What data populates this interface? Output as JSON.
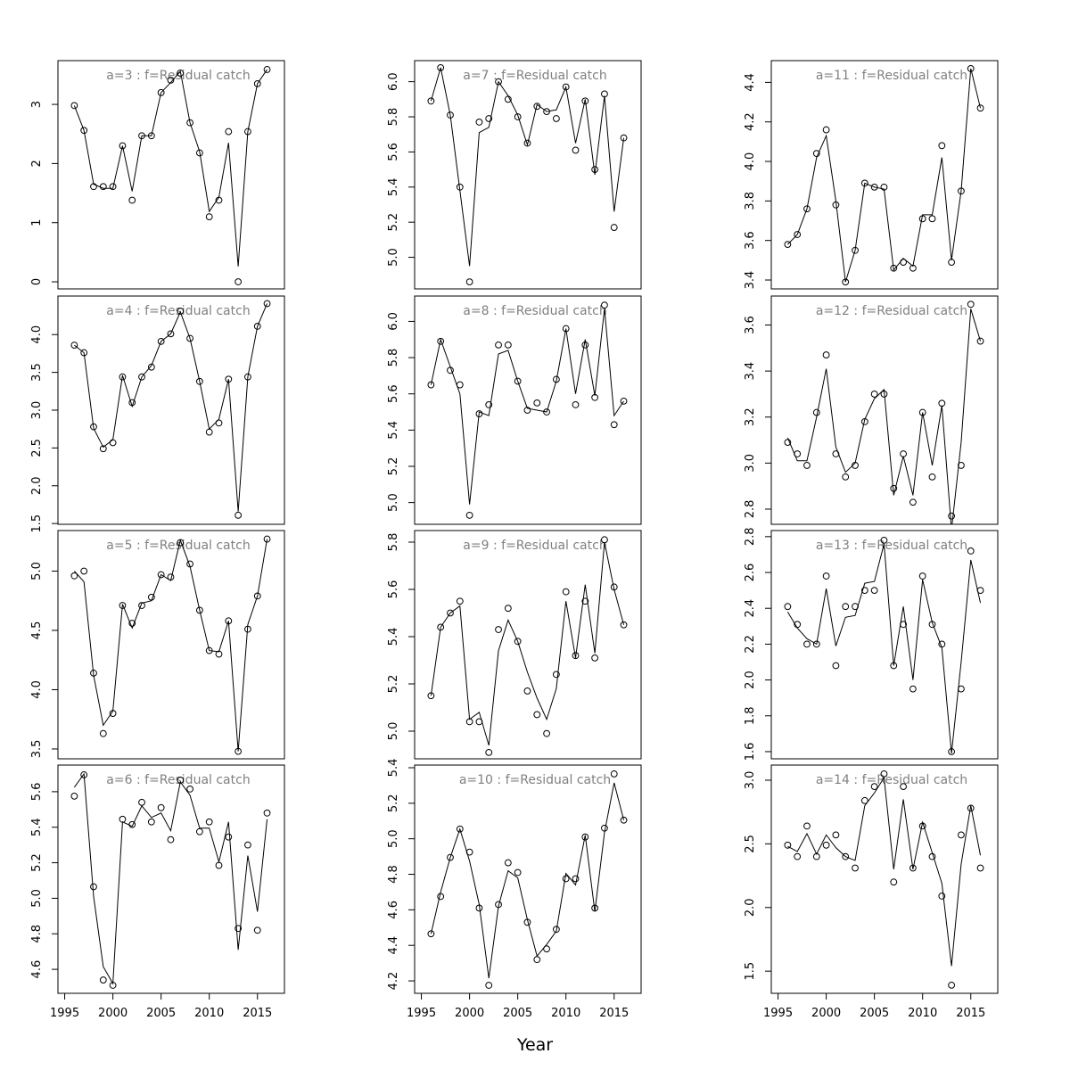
{
  "xlabel": "Year",
  "chart_data": [
    {
      "type": "line",
      "title": "a=3  :  f=Residual catch",
      "x": [
        1996,
        1997,
        1998,
        1999,
        2000,
        2001,
        2002,
        2003,
        2004,
        2005,
        2006,
        2007,
        2008,
        2009,
        2010,
        2011,
        2012,
        2013,
        2014,
        2015,
        2016
      ],
      "observed": [
        2.98,
        2.56,
        1.61,
        1.61,
        1.61,
        2.3,
        1.38,
        2.47,
        2.47,
        3.2,
        3.41,
        3.53,
        2.69,
        2.18,
        1.1,
        1.38,
        2.54,
        0.0,
        2.54,
        3.35,
        3.59
      ],
      "fitted": [
        2.98,
        2.56,
        1.65,
        1.58,
        1.58,
        2.3,
        1.53,
        2.47,
        2.47,
        3.2,
        3.37,
        3.56,
        2.69,
        2.2,
        1.19,
        1.43,
        2.35,
        0.26,
        2.54,
        3.35,
        3.59
      ],
      "xlim": [
        1994.3,
        2017.8
      ],
      "ylim": [
        -0.12,
        3.74
      ],
      "yticks": [
        0,
        1,
        2,
        3
      ]
    },
    {
      "type": "line",
      "title": "a=4  :  f=Residual catch",
      "x": [
        1996,
        1997,
        1998,
        1999,
        2000,
        2001,
        2002,
        2003,
        2004,
        2005,
        2006,
        2007,
        2008,
        2009,
        2010,
        2011,
        2012,
        2013,
        2014,
        2015,
        2016
      ],
      "observed": [
        3.86,
        3.76,
        2.78,
        2.49,
        2.57,
        3.44,
        3.1,
        3.44,
        3.57,
        3.91,
        4.01,
        4.31,
        3.95,
        3.38,
        2.71,
        2.83,
        3.41,
        1.61,
        3.44,
        4.11,
        4.41
      ],
      "fitted": [
        3.86,
        3.76,
        2.76,
        2.51,
        2.61,
        3.46,
        3.05,
        3.44,
        3.59,
        3.91,
        4.01,
        4.3,
        3.95,
        3.38,
        2.75,
        2.88,
        3.41,
        1.66,
        3.44,
        4.11,
        4.41
      ],
      "xlim": [
        1994.3,
        2017.8
      ],
      "ylim": [
        1.49,
        4.51
      ],
      "yticks": [
        1.5,
        {
          "value": 2,
          "label": "2.0"
        },
        2.5,
        {
          "value": 3,
          "label": "3.0"
        },
        3.5,
        {
          "value": 4,
          "label": "4.0"
        }
      ]
    },
    {
      "type": "line",
      "title": "a=5  :  f=Residual catch",
      "x": [
        1996,
        1997,
        1998,
        1999,
        2000,
        2001,
        2002,
        2003,
        2004,
        2005,
        2006,
        2007,
        2008,
        2009,
        2010,
        2011,
        2012,
        2013,
        2014,
        2015,
        2016
      ],
      "observed": [
        4.96,
        5.0,
        4.14,
        3.63,
        3.8,
        4.71,
        4.56,
        4.71,
        4.78,
        4.97,
        4.95,
        5.24,
        5.06,
        4.67,
        4.33,
        4.3,
        4.58,
        3.48,
        4.51,
        4.79,
        5.27
      ],
      "fitted": [
        5.0,
        4.91,
        4.12,
        3.7,
        3.82,
        4.72,
        4.52,
        4.73,
        4.75,
        4.97,
        4.92,
        5.26,
        5.04,
        4.67,
        4.33,
        4.32,
        4.58,
        3.48,
        4.55,
        4.79,
        5.27
      ],
      "xlim": [
        1994.3,
        2017.8
      ],
      "ylim": [
        3.417,
        5.342
      ],
      "yticks": [
        3.5,
        {
          "value": 4,
          "label": "4.0"
        },
        4.5,
        {
          "value": 5,
          "label": "5.0"
        }
      ]
    },
    {
      "type": "line",
      "title": "a=6  :  f=Residual catch",
      "x": [
        1996,
        1997,
        1998,
        1999,
        2000,
        2001,
        2002,
        2003,
        2004,
        2005,
        2006,
        2007,
        2008,
        2009,
        2010,
        2011,
        2012,
        2013,
        2014,
        2015,
        2016
      ],
      "observed": [
        5.575,
        5.695,
        5.065,
        4.54,
        4.51,
        5.445,
        5.415,
        5.54,
        5.43,
        5.51,
        5.33,
        5.665,
        5.615,
        5.375,
        5.43,
        5.185,
        5.345,
        4.83,
        5.3,
        4.82,
        5.48
      ],
      "fitted": [
        5.625,
        5.7,
        5.01,
        4.615,
        4.52,
        5.43,
        5.405,
        5.52,
        5.455,
        5.48,
        5.38,
        5.655,
        5.58,
        5.395,
        5.395,
        5.205,
        5.43,
        4.71,
        5.24,
        4.925,
        5.445
      ],
      "xlim": [
        1994.3,
        2017.8
      ],
      "ylim": [
        4.465,
        5.75
      ],
      "yticks": [
        4.6,
        4.8,
        {
          "value": 5,
          "label": "5.0"
        },
        5.2,
        5.4,
        5.6
      ],
      "xticks": [
        1995,
        2000,
        2005,
        2010,
        2015
      ]
    },
    {
      "type": "line",
      "title": "a=7  :  f=Residual catch",
      "x": [
        1996,
        1997,
        1998,
        1999,
        2000,
        2001,
        2002,
        2003,
        2004,
        2005,
        2006,
        2007,
        2008,
        2009,
        2010,
        2011,
        2012,
        2013,
        2014,
        2015,
        2016
      ],
      "observed": [
        5.89,
        6.08,
        5.81,
        5.4,
        4.86,
        5.77,
        5.79,
        6.0,
        5.9,
        5.8,
        5.65,
        5.86,
        5.83,
        5.79,
        5.97,
        5.61,
        5.89,
        5.5,
        5.93,
        5.17,
        5.68
      ],
      "fitted": [
        5.89,
        6.08,
        5.81,
        5.38,
        4.95,
        5.71,
        5.74,
        6.0,
        5.92,
        5.81,
        5.64,
        5.87,
        5.83,
        5.84,
        5.97,
        5.65,
        5.9,
        5.47,
        5.92,
        5.26,
        5.68
      ],
      "xlim": [
        1994.3,
        2017.8
      ],
      "ylim": [
        4.82,
        6.12
      ],
      "yticks": [
        {
          "value": 5,
          "label": "5.0"
        },
        5.2,
        5.4,
        5.6,
        5.8,
        {
          "value": 6,
          "label": "6.0"
        }
      ]
    },
    {
      "type": "line",
      "title": "a=8  :  f=Residual catch",
      "x": [
        1996,
        1997,
        1998,
        1999,
        2000,
        2001,
        2002,
        2003,
        2004,
        2005,
        2006,
        2007,
        2008,
        2009,
        2010,
        2011,
        2012,
        2013,
        2014,
        2015,
        2016
      ],
      "observed": [
        5.65,
        5.89,
        5.73,
        5.65,
        4.93,
        5.49,
        5.54,
        5.87,
        5.87,
        5.67,
        5.51,
        5.55,
        5.5,
        5.68,
        5.96,
        5.54,
        5.87,
        5.58,
        6.09,
        5.43,
        5.56
      ],
      "fitted": [
        5.65,
        5.9,
        5.75,
        5.6,
        4.99,
        5.5,
        5.48,
        5.82,
        5.84,
        5.67,
        5.52,
        5.51,
        5.5,
        5.67,
        5.96,
        5.6,
        5.9,
        5.59,
        6.07,
        5.48,
        5.56
      ],
      "xlim": [
        1994.3,
        2017.8
      ],
      "ylim": [
        4.88,
        6.14
      ],
      "yticks": [
        {
          "value": 5,
          "label": "5.0"
        },
        5.2,
        5.4,
        5.6,
        5.8,
        {
          "value": 6,
          "label": "6.0"
        }
      ]
    },
    {
      "type": "line",
      "title": "a=9  :  f=Residual catch",
      "x": [
        1996,
        1997,
        1998,
        1999,
        2000,
        2001,
        2002,
        2003,
        2004,
        2005,
        2006,
        2007,
        2008,
        2009,
        2010,
        2011,
        2012,
        2013,
        2014,
        2015,
        2016
      ],
      "observed": [
        5.15,
        5.44,
        5.5,
        5.55,
        5.04,
        5.04,
        4.91,
        5.43,
        5.52,
        5.38,
        5.17,
        5.07,
        4.99,
        5.24,
        5.59,
        5.32,
        5.55,
        5.31,
        5.81,
        5.61,
        5.45
      ],
      "fitted": [
        5.15,
        5.44,
        5.5,
        5.53,
        5.05,
        5.08,
        4.94,
        5.34,
        5.47,
        5.38,
        5.25,
        5.14,
        5.05,
        5.18,
        5.55,
        5.31,
        5.62,
        5.33,
        5.8,
        5.6,
        5.45
      ],
      "xlim": [
        1994.3,
        2017.8
      ],
      "ylim": [
        4.883,
        5.849
      ],
      "yticks": [
        {
          "value": 5,
          "label": "5.0"
        },
        5.2,
        5.4,
        5.6,
        5.8
      ]
    },
    {
      "type": "line",
      "title": "a=10  :  f=Residual catch",
      "x": [
        1996,
        1997,
        1998,
        1999,
        2000,
        2001,
        2002,
        2003,
        2004,
        2005,
        2006,
        2007,
        2008,
        2009,
        2010,
        2011,
        2012,
        2013,
        2014,
        2015,
        2016
      ],
      "observed": [
        4.465,
        4.675,
        4.895,
        5.055,
        4.925,
        4.61,
        4.175,
        4.63,
        4.865,
        4.81,
        4.53,
        4.32,
        4.38,
        4.49,
        4.775,
        4.775,
        5.01,
        4.61,
        5.06,
        5.365,
        5.105
      ],
      "fitted": [
        4.465,
        4.7,
        4.895,
        5.055,
        4.875,
        4.63,
        4.215,
        4.62,
        4.82,
        4.78,
        4.545,
        4.34,
        4.405,
        4.48,
        4.805,
        4.74,
        5.02,
        4.59,
        5.035,
        5.315,
        5.105
      ],
      "xlim": [
        1994.3,
        2017.8
      ],
      "ylim": [
        4.13,
        5.415
      ],
      "yticks": [
        4.2,
        4.4,
        4.6,
        4.8,
        {
          "value": 5,
          "label": "5.0"
        },
        5.2,
        5.4
      ],
      "xticks": [
        1995,
        2000,
        2005,
        2010,
        2015
      ]
    },
    {
      "type": "line",
      "title": "a=11  :  f=Residual catch",
      "x": [
        1996,
        1997,
        1998,
        1999,
        2000,
        2001,
        2002,
        2003,
        2004,
        2005,
        2006,
        2007,
        2008,
        2009,
        2010,
        2011,
        2012,
        2013,
        2014,
        2015,
        2016
      ],
      "observed": [
        3.58,
        3.63,
        3.76,
        4.04,
        4.16,
        3.78,
        3.39,
        3.55,
        3.89,
        3.87,
        3.87,
        3.46,
        3.49,
        3.46,
        3.71,
        3.71,
        4.08,
        3.49,
        3.85,
        4.47,
        4.27
      ],
      "fitted": [
        3.58,
        3.63,
        3.76,
        4.02,
        4.13,
        3.8,
        3.39,
        3.55,
        3.89,
        3.87,
        3.86,
        3.45,
        3.51,
        3.47,
        3.73,
        3.73,
        4.02,
        3.5,
        3.85,
        4.47,
        4.27
      ],
      "xlim": [
        1994.3,
        2017.8
      ],
      "ylim": [
        3.355,
        4.51
      ],
      "yticks": [
        3.4,
        3.6,
        3.8,
        {
          "value": 4,
          "label": "4.0"
        },
        4.2,
        4.4
      ]
    },
    {
      "type": "line",
      "title": "a=12  :  f=Residual catch",
      "x": [
        1996,
        1997,
        1998,
        1999,
        2000,
        2001,
        2002,
        2003,
        2004,
        2005,
        2006,
        2007,
        2008,
        2009,
        2010,
        2011,
        2012,
        2013,
        2014,
        2015,
        2016
      ],
      "observed": [
        3.09,
        3.04,
        2.99,
        3.22,
        3.47,
        3.04,
        2.94,
        2.99,
        3.18,
        3.3,
        3.3,
        2.89,
        3.04,
        2.83,
        3.22,
        2.94,
        3.26,
        2.77,
        2.99,
        3.69,
        3.53
      ],
      "fitted": [
        3.11,
        3.01,
        3.01,
        3.2,
        3.41,
        3.07,
        2.96,
        3.0,
        3.19,
        3.28,
        3.32,
        2.86,
        3.03,
        2.86,
        3.22,
        2.99,
        3.25,
        2.71,
        3.09,
        3.67,
        3.53
      ],
      "xlim": [
        1994.3,
        2017.8
      ],
      "ylim": [
        2.734,
        3.726
      ],
      "yticks": [
        2.8,
        {
          "value": 3,
          "label": "3.0"
        },
        3.2,
        3.4,
        3.6
      ]
    },
    {
      "type": "line",
      "title": "a=13  :  f=Residual catch",
      "x": [
        1996,
        1997,
        1998,
        1999,
        2000,
        2001,
        2002,
        2003,
        2004,
        2005,
        2006,
        2007,
        2008,
        2009,
        2010,
        2011,
        2012,
        2013,
        2014,
        2015,
        2016
      ],
      "observed": [
        2.41,
        2.31,
        2.2,
        2.2,
        2.58,
        2.08,
        2.41,
        2.41,
        2.5,
        2.5,
        2.78,
        2.08,
        2.31,
        1.95,
        2.58,
        2.31,
        2.2,
        1.6,
        1.95,
        2.72,
        2.5
      ],
      "fitted": [
        2.38,
        2.29,
        2.23,
        2.2,
        2.51,
        2.19,
        2.35,
        2.36,
        2.54,
        2.55,
        2.76,
        2.08,
        2.41,
        2.0,
        2.56,
        2.32,
        2.18,
        1.59,
        2.1,
        2.67,
        2.43
      ],
      "xlim": [
        1994.3,
        2017.8
      ],
      "ylim": [
        1.56,
        2.834
      ],
      "yticks": [
        1.6,
        1.8,
        {
          "value": 2,
          "label": "2.0"
        },
        2.2,
        2.4,
        2.6,
        2.8
      ]
    },
    {
      "type": "line",
      "title": "a=14  :  f=Residual catch",
      "x": [
        1996,
        1997,
        1998,
        1999,
        2000,
        2001,
        2002,
        2003,
        2004,
        2005,
        2006,
        2007,
        2008,
        2009,
        2010,
        2011,
        2012,
        2013,
        2014,
        2015,
        2016
      ],
      "observed": [
        2.49,
        2.4,
        2.64,
        2.4,
        2.49,
        2.57,
        2.4,
        2.31,
        2.84,
        2.95,
        3.05,
        2.2,
        2.95,
        2.31,
        2.64,
        2.4,
        2.09,
        1.39,
        2.57,
        2.78,
        2.31
      ],
      "fitted": [
        2.48,
        2.44,
        2.58,
        2.42,
        2.57,
        2.47,
        2.4,
        2.37,
        2.8,
        2.9,
        3.02,
        2.3,
        2.85,
        2.3,
        2.67,
        2.43,
        2.19,
        1.54,
        2.34,
        2.8,
        2.41
      ],
      "xlim": [
        1994.3,
        2017.8
      ],
      "ylim": [
        1.326,
        3.119
      ],
      "yticks": [
        1.5,
        {
          "value": 2,
          "label": "2.0"
        },
        2.5,
        {
          "value": 3,
          "label": "3.0"
        }
      ],
      "xticks": [
        1995,
        2000,
        2005,
        2010,
        2015
      ]
    }
  ]
}
